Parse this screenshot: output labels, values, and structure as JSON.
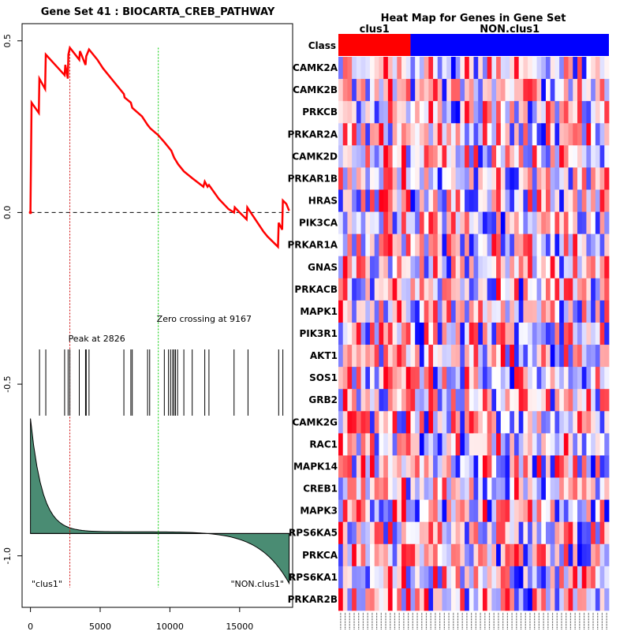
{
  "chart_data": [
    {
      "type": "line",
      "name": "enrichment-plot",
      "title": "Gene Set  41 : BIOCARTA_CREB_PATHWAY",
      "xlabel": "",
      "ylabel": "",
      "xlim": [
        -600,
        18800
      ],
      "ylim": [
        -1.15,
        0.55
      ],
      "x_ticks": [
        0,
        5000,
        10000,
        15000
      ],
      "x_tick_labels": [
        "0",
        "5000",
        "10000",
        "15000"
      ],
      "y_ticks": [
        0.5,
        0.0,
        -0.5,
        -1.0
      ],
      "y_tick_labels": [
        "0.5",
        "0.0",
        "-0.5",
        "-1.0"
      ],
      "running_es": {
        "x": [
          0,
          80,
          600,
          640,
          1050,
          1100,
          2450,
          2500,
          2680,
          2720,
          2826,
          3500,
          3550,
          3950,
          4000,
          4200,
          4800,
          5200,
          6000,
          6700,
          6750,
          7200,
          7300,
          8000,
          8400,
          8600,
          9167,
          9600,
          9900,
          10100,
          10300,
          10600,
          11000,
          11600,
          12400,
          12500,
          12700,
          12800,
          13500,
          14200,
          14600,
          14650,
          15000,
          15500,
          15550,
          16700,
          17000,
          17750,
          17800,
          18050,
          18100,
          18350,
          18550
        ],
        "y": [
          0.0,
          0.32,
          0.29,
          0.39,
          0.36,
          0.46,
          0.4,
          0.43,
          0.39,
          0.46,
          0.48,
          0.445,
          0.47,
          0.43,
          0.455,
          0.475,
          0.445,
          0.42,
          0.38,
          0.345,
          0.335,
          0.32,
          0.305,
          0.28,
          0.255,
          0.245,
          0.225,
          0.205,
          0.19,
          0.18,
          0.16,
          0.14,
          0.12,
          0.1,
          0.075,
          0.09,
          0.075,
          0.08,
          0.04,
          0.01,
          0.0,
          0.015,
          0.0,
          -0.02,
          0.015,
          -0.055,
          -0.07,
          -0.1,
          -0.03,
          -0.05,
          0.035,
          0.025,
          0.005
        ]
      },
      "hit_positions": [
        650,
        1100,
        2450,
        2700,
        2826,
        3500,
        3950,
        4000,
        4200,
        6700,
        7200,
        7300,
        8400,
        8550,
        9600,
        9900,
        10050,
        10200,
        10300,
        10400,
        10550,
        11000,
        11600,
        12500,
        12800,
        14600,
        15600,
        17800,
        18100
      ],
      "peak": {
        "x": 2826,
        "label": "Peak at 2826"
      },
      "zero_crossing": {
        "x": 9167,
        "label": "Zero crossing at 9167"
      },
      "ranked_metric": {
        "start": -0.6,
        "end_left": -0.93,
        "end_right": -1.08,
        "baseline": -0.935
      },
      "class_labels": {
        "left": "\"clus1\"",
        "right": "\"NON.clus1\""
      },
      "colors": {
        "es_line": "#ff0000",
        "peak_line": "#cc0000",
        "zero_line": "#00cc00",
        "metric_fill": "#4a8c73"
      }
    },
    {
      "type": "heatmap",
      "name": "gene-heatmap",
      "title": "Heat Map for Genes in Gene Set",
      "class_row_label": "Class",
      "groups": [
        {
          "name": "clus1",
          "count": 16,
          "color": "#ff0000"
        },
        {
          "name": "NON.clus1",
          "count": 44,
          "color": "#0000ff"
        }
      ],
      "genes": [
        "CAMK2A",
        "CAMK2B",
        "PRKCB",
        "PRKAR2A",
        "CAMK2D",
        "PRKAR1B",
        "HRAS",
        "PIK3CA",
        "PRKAR1A",
        "GNAS",
        "PRKACB",
        "MAPK1",
        "PIK3R1",
        "AKT1",
        "SOS1",
        "GRB2",
        "CAMK2G",
        "RAC1",
        "MAPK14",
        "CREB1",
        "MAPK3",
        "RPS6KA5",
        "PRKCA",
        "RPS6KA1",
        "PRKAR2B"
      ],
      "n_columns": 60,
      "value_seed": 41,
      "value_range": [
        -1,
        1
      ],
      "colors": {
        "high": "#ff0000",
        "low": "#0000ff",
        "mid": "#ffffff"
      }
    }
  ]
}
